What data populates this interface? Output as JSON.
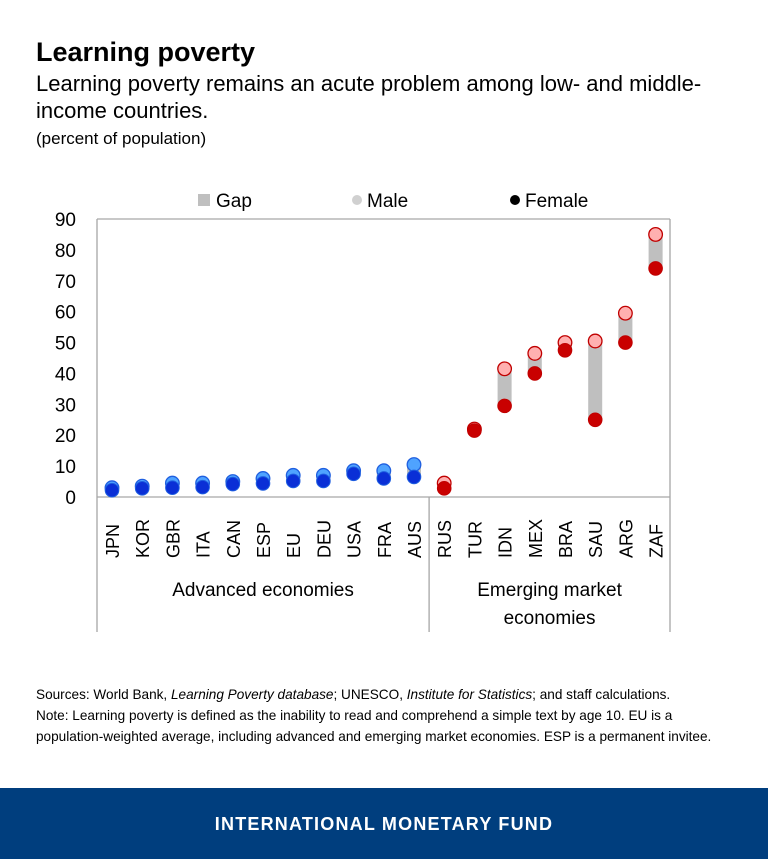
{
  "header": {
    "title": "Learning poverty",
    "subtitle": "Learning poverty remains an acute problem among low- and middle-income countries.",
    "units": "(percent of population)"
  },
  "chart_data": {
    "type": "scatter",
    "categories": [
      "JPN",
      "KOR",
      "GBR",
      "ITA",
      "CAN",
      "ESP",
      "EU",
      "DEU",
      "USA",
      "FRA",
      "AUS",
      "RUS",
      "TUR",
      "IDN",
      "MEX",
      "BRA",
      "SAU",
      "ARG",
      "ZAF"
    ],
    "series": [
      {
        "name": "Male",
        "values": [
          3,
          3.5,
          4.5,
          4.5,
          5,
          6,
          7,
          7,
          8.5,
          8.5,
          10.5,
          4.5,
          22,
          41.5,
          46.5,
          50,
          50.5,
          59.5,
          85
        ]
      },
      {
        "name": "Female",
        "values": [
          2.2,
          2.8,
          3,
          3.2,
          4.2,
          4.4,
          5.2,
          5.2,
          7.5,
          6,
          6.5,
          2.8,
          21.5,
          29.5,
          40,
          47.5,
          25,
          50,
          74
        ]
      }
    ],
    "legend": {
      "entries": [
        "Gap",
        "Male",
        "Female"
      ],
      "placement": "top"
    },
    "ylim": [
      0,
      90
    ],
    "yticks": [
      0,
      10,
      20,
      30,
      40,
      50,
      60,
      70,
      80,
      90
    ],
    "groups": [
      {
        "label": "Advanced economies",
        "categories": [
          "JPN",
          "KOR",
          "GBR",
          "ITA",
          "CAN",
          "ESP",
          "EU",
          "DEU",
          "USA",
          "FRA",
          "AUS"
        ]
      },
      {
        "label_lines": [
          "Emerging market",
          "economies"
        ],
        "categories": [
          "RUS",
          "TUR",
          "IDN",
          "MEX",
          "BRA",
          "SAU",
          "ARG",
          "ZAF"
        ]
      }
    ],
    "colors": {
      "gap": "#bfbfbf",
      "advanced_male": "#4fa3ff",
      "advanced_female": "#0a2fd6",
      "emerging_male": "#ffb0b0",
      "emerging_female": "#c90000",
      "marker_edge_advanced": "#1f5fe0",
      "marker_edge_emerging": "#c00000",
      "axis": "#a6a6a6",
      "legend_male": "#d0d0d0",
      "legend_female": "#000000"
    },
    "grid": false
  },
  "notes": {
    "sources_prefix": "Sources: World Bank, ",
    "sources_db": "Learning Poverty database",
    "sources_mid": "; UNESCO, ",
    "sources_inst": "Institute for Statistics",
    "sources_suffix": "; and staff calculations.",
    "note": "Note: Learning poverty is defined as the inability to read and comprehend a simple text by age 10. EU is a population-weighted average, including advanced and emerging market economies. ESP is a permanent invitee."
  },
  "footer": {
    "label": "INTERNATIONAL MONETARY FUND"
  }
}
